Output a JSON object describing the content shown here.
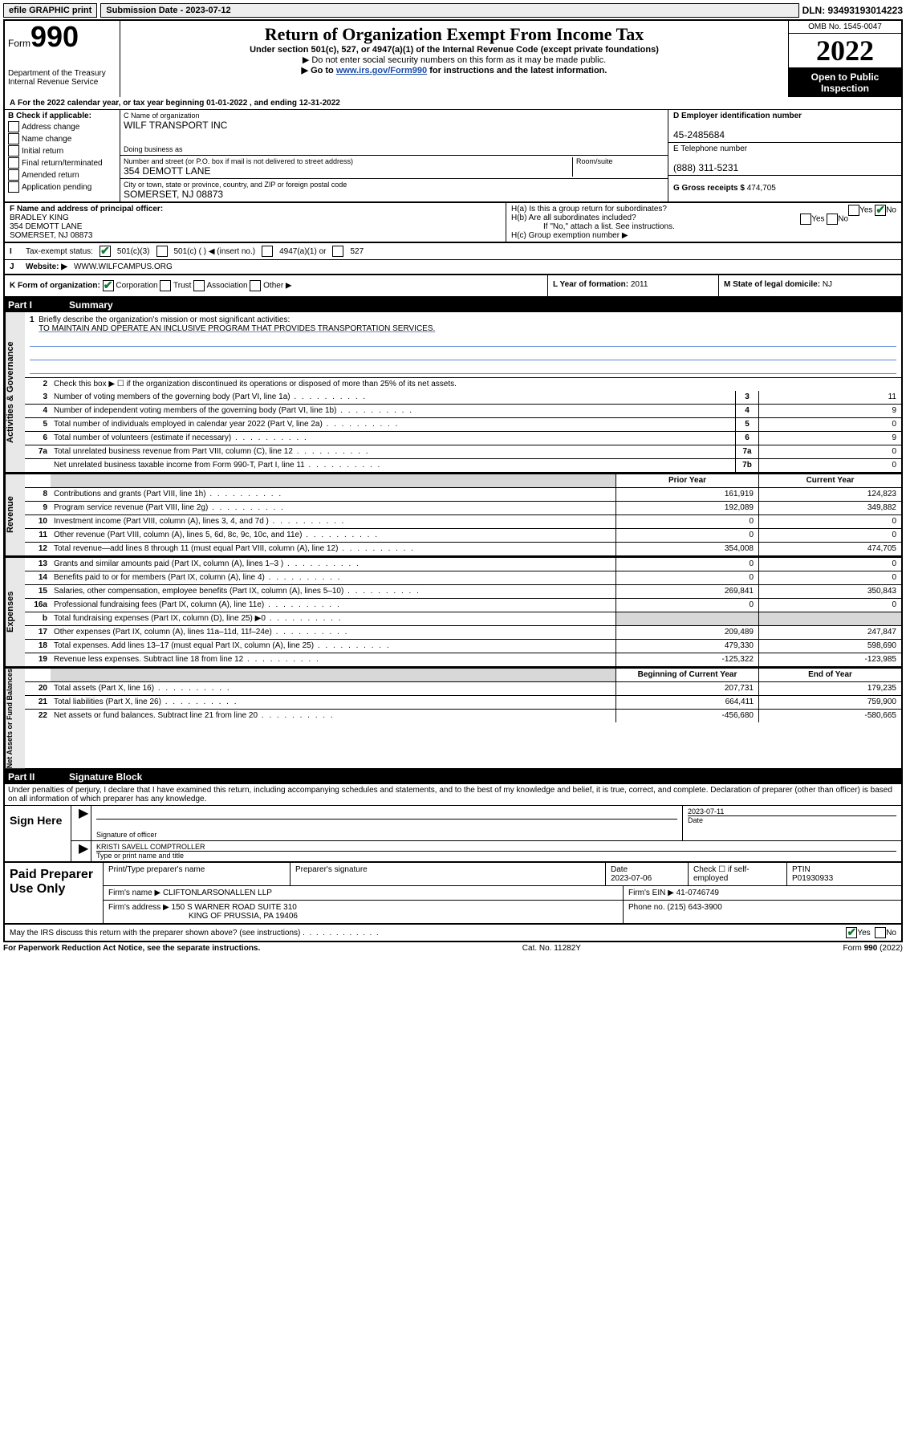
{
  "topbar": {
    "efile": "efile GRAPHIC print",
    "submission": "Submission Date - 2023-07-12",
    "dln": "DLN: 93493193014223"
  },
  "header": {
    "form_label": "Form",
    "form_number": "990",
    "dept": "Department of the Treasury Internal Revenue Service",
    "title": "Return of Organization Exempt From Income Tax",
    "sub1": "Under section 501(c), 527, or 4947(a)(1) of the Internal Revenue Code (except private foundations)",
    "sub2": "▶ Do not enter social security numbers on this form as it may be made public.",
    "sub3_pre": "▶ Go to ",
    "sub3_link": "www.irs.gov/Form990",
    "sub3_post": " for instructions and the latest information.",
    "omb": "OMB No. 1545-0047",
    "year": "2022",
    "open": "Open to Public Inspection"
  },
  "section_a": {
    "a_text": "For the 2022 calendar year, or tax year beginning 01-01-2022    , and ending 12-31-2022",
    "b_label": "B Check if applicable:",
    "b_items": [
      "Address change",
      "Name change",
      "Initial return",
      "Final return/terminated",
      "Amended return",
      "Application pending"
    ],
    "c_label": "C Name of organization",
    "c_name": "WILF TRANSPORT INC",
    "dba_label": "Doing business as",
    "addr_label": "Number and street (or P.O. box if mail is not delivered to street address)",
    "addr": "354 DEMOTT LANE",
    "room_label": "Room/suite",
    "city_label": "City or town, state or province, country, and ZIP or foreign postal code",
    "city": "SOMERSET, NJ  08873",
    "d_label": "D Employer identification number",
    "d_ein": "45-2485684",
    "e_label": "E Telephone number",
    "e_tel": "(888) 311-5231",
    "g_label": "G Gross receipts $",
    "g_val": "474,705"
  },
  "section_f": {
    "f_label": "F  Name and address of principal officer:",
    "f_name": "BRADLEY KING",
    "f_addr1": "354 DEMOTT LANE",
    "f_addr2": "SOMERSET, NJ  08873",
    "ha_label": "H(a)  Is this a group return for subordinates?",
    "hb_label": "H(b)  Are all subordinates included?",
    "hb_note": "If \"No,\" attach a list. See instructions.",
    "hc_label": "H(c)  Group exemption number ▶"
  },
  "section_i": {
    "i_label": "Tax-exempt status:",
    "i_501c3": "501(c)(3)",
    "i_501c": "501(c) (  ) ◀ (insert no.)",
    "i_4947": "4947(a)(1) or",
    "i_527": "527",
    "j_label": "Website: ▶",
    "j_val": "WWW.WILFCAMPUS.ORG"
  },
  "row_k": {
    "k_label": "K Form of organization:",
    "k_corp": "Corporation",
    "k_trust": "Trust",
    "k_assoc": "Association",
    "k_other": "Other ▶",
    "l_label": "L Year of formation:",
    "l_val": "2011",
    "m_label": "M State of legal domicile:",
    "m_val": "NJ"
  },
  "part1": {
    "header_pt": "Part I",
    "header_title": "Summary",
    "line1_label": "Briefly describe the organization's mission or most significant activities:",
    "line1_val": "TO MAINTAIN AND OPERATE AN INCLUSIVE PROGRAM THAT PROVIDES TRANSPORTATION SERVICES.",
    "line2": "Check this box ▶ ☐ if the organization discontinued its operations or disposed of more than 25% of its net assets.",
    "lines_ag": [
      {
        "n": "3",
        "d": "Number of voting members of the governing body (Part VI, line 1a)",
        "box": "3",
        "v": "11"
      },
      {
        "n": "4",
        "d": "Number of independent voting members of the governing body (Part VI, line 1b)",
        "box": "4",
        "v": "9"
      },
      {
        "n": "5",
        "d": "Total number of individuals employed in calendar year 2022 (Part V, line 2a)",
        "box": "5",
        "v": "0"
      },
      {
        "n": "6",
        "d": "Total number of volunteers (estimate if necessary)",
        "box": "6",
        "v": "9"
      },
      {
        "n": "7a",
        "d": "Total unrelated business revenue from Part VIII, column (C), line 12",
        "box": "7a",
        "v": "0"
      },
      {
        "n": "",
        "d": "Net unrelated business taxable income from Form 990-T, Part I, line 11",
        "box": "7b",
        "v": "0"
      }
    ],
    "head_prior": "Prior Year",
    "head_current": "Current Year",
    "lines_rev": [
      {
        "n": "8",
        "d": "Contributions and grants (Part VIII, line 1h)",
        "v1": "161,919",
        "v2": "124,823"
      },
      {
        "n": "9",
        "d": "Program service revenue (Part VIII, line 2g)",
        "v1": "192,089",
        "v2": "349,882"
      },
      {
        "n": "10",
        "d": "Investment income (Part VIII, column (A), lines 3, 4, and 7d )",
        "v1": "0",
        "v2": "0"
      },
      {
        "n": "11",
        "d": "Other revenue (Part VIII, column (A), lines 5, 6d, 8c, 9c, 10c, and 11e)",
        "v1": "0",
        "v2": "0"
      },
      {
        "n": "12",
        "d": "Total revenue—add lines 8 through 11 (must equal Part VIII, column (A), line 12)",
        "v1": "354,008",
        "v2": "474,705"
      }
    ],
    "lines_exp": [
      {
        "n": "13",
        "d": "Grants and similar amounts paid (Part IX, column (A), lines 1–3 )",
        "v1": "0",
        "v2": "0"
      },
      {
        "n": "14",
        "d": "Benefits paid to or for members (Part IX, column (A), line 4)",
        "v1": "0",
        "v2": "0"
      },
      {
        "n": "15",
        "d": "Salaries, other compensation, employee benefits (Part IX, column (A), lines 5–10)",
        "v1": "269,841",
        "v2": "350,843"
      },
      {
        "n": "16a",
        "d": "Professional fundraising fees (Part IX, column (A), line 11e)",
        "v1": "0",
        "v2": "0"
      },
      {
        "n": "b",
        "d": "Total fundraising expenses (Part IX, column (D), line 25) ▶0",
        "v1": "",
        "v2": "",
        "gray": true
      },
      {
        "n": "17",
        "d": "Other expenses (Part IX, column (A), lines 11a–11d, 11f–24e)",
        "v1": "209,489",
        "v2": "247,847"
      },
      {
        "n": "18",
        "d": "Total expenses. Add lines 13–17 (must equal Part IX, column (A), line 25)",
        "v1": "479,330",
        "v2": "598,690"
      },
      {
        "n": "19",
        "d": "Revenue less expenses. Subtract line 18 from line 12",
        "v1": "-125,322",
        "v2": "-123,985"
      }
    ],
    "head_begin": "Beginning of Current Year",
    "head_end": "End of Year",
    "lines_na": [
      {
        "n": "20",
        "d": "Total assets (Part X, line 16)",
        "v1": "207,731",
        "v2": "179,235"
      },
      {
        "n": "21",
        "d": "Total liabilities (Part X, line 26)",
        "v1": "664,411",
        "v2": "759,900"
      },
      {
        "n": "22",
        "d": "Net assets or fund balances. Subtract line 21 from line 20",
        "v1": "-456,680",
        "v2": "-580,665"
      }
    ],
    "band_ag": "Activities & Governance",
    "band_rev": "Revenue",
    "band_exp": "Expenses",
    "band_na": "Net Assets or Fund Balances"
  },
  "part2": {
    "header_pt": "Part II",
    "header_title": "Signature Block",
    "penalties": "Under penalties of perjury, I declare that I have examined this return, including accompanying schedules and statements, and to the best of my knowledge and belief, it is true, correct, and complete. Declaration of preparer (other than officer) is based on all information of which preparer has any knowledge.",
    "sign_here": "Sign Here",
    "sig_officer": "Signature of officer",
    "sig_date": "Date",
    "sig_date_val": "2023-07-11",
    "sig_name": "KRISTI SAVELL COMPTROLLER",
    "sig_name_label": "Type or print name and title",
    "paid_label": "Paid Preparer Use Only",
    "prep_name_label": "Print/Type preparer's name",
    "prep_sig_label": "Preparer's signature",
    "prep_date_label": "Date",
    "prep_date": "2023-07-06",
    "prep_check": "Check ☐ if self-employed",
    "ptin_label": "PTIN",
    "ptin": "P01930933",
    "firm_name_label": "Firm's name    ▶",
    "firm_name": "CLIFTONLARSONALLEN LLP",
    "firm_ein_label": "Firm's EIN ▶",
    "firm_ein": "41-0746749",
    "firm_addr_label": "Firm's address ▶",
    "firm_addr1": "150 S WARNER ROAD SUITE 310",
    "firm_addr2": "KING OF PRUSSIA, PA  19406",
    "firm_phone_label": "Phone no.",
    "firm_phone": "(215) 643-3900",
    "may_discuss": "May the IRS discuss this return with the preparer shown above? (see instructions)"
  },
  "footer": {
    "left": "For Paperwork Reduction Act Notice, see the separate instructions.",
    "center": "Cat. No. 11282Y",
    "right": "Form 990 (2022)"
  },
  "labels": {
    "yes": "Yes",
    "no": "No"
  }
}
